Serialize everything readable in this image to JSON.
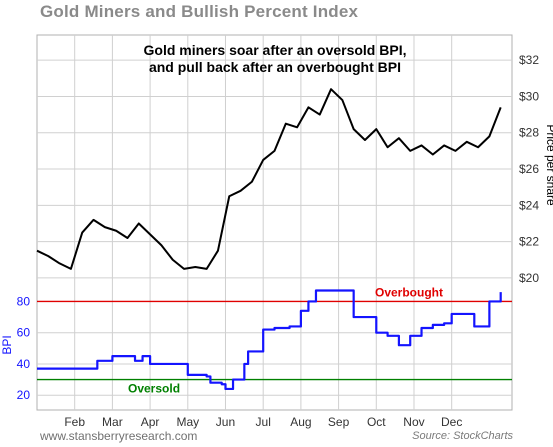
{
  "title": "Gold Miners and Bullish Percent Index",
  "annotation": {
    "line1": "Gold miners soar after an oversold BPI,",
    "line2": "and pull back after an overbought BPI"
  },
  "footer": {
    "left": "www.stansberryresearch.com",
    "right": "Source: StockCharts"
  },
  "colors": {
    "price": "#000000",
    "bpi": "#1414ff",
    "overbought": "#e00000",
    "oversold": "#008000",
    "grid": "#d0d0d0"
  },
  "chart_data": [
    {
      "type": "line",
      "name": "price",
      "ylabel": "Price per share",
      "yticks": [
        "$20",
        "$22",
        "$24",
        "$26",
        "$28",
        "$30",
        "$32"
      ],
      "ylim": [
        19.5,
        33
      ],
      "x": [
        0,
        0.3,
        0.6,
        0.9,
        1.2,
        1.5,
        1.8,
        2.1,
        2.4,
        2.7,
        3.0,
        3.3,
        3.6,
        3.9,
        4.2,
        4.5,
        4.8,
        5.1,
        5.4,
        5.7,
        6.0,
        6.3,
        6.6,
        6.9,
        7.2,
        7.5,
        7.8,
        8.1,
        8.4,
        8.7,
        9.0,
        9.3,
        9.6,
        9.9,
        10.2,
        10.5,
        10.8,
        11.1,
        11.4,
        11.7,
        12.0,
        12.3
      ],
      "values": [
        21.5,
        21.2,
        20.8,
        20.5,
        22.5,
        23.2,
        22.8,
        22.6,
        22.2,
        23.0,
        22.4,
        21.8,
        21.0,
        20.5,
        20.6,
        20.5,
        21.5,
        24.5,
        24.8,
        25.3,
        26.5,
        27.0,
        28.5,
        28.3,
        29.4,
        29.0,
        30.4,
        29.8,
        28.2,
        27.6,
        28.2,
        27.2,
        27.7,
        27.0,
        27.3,
        26.8,
        27.3,
        27.0,
        27.5,
        27.2,
        27.8,
        29.4
      ],
      "grid": true
    },
    {
      "type": "line",
      "name": "BPI",
      "ylabel": "BPI",
      "yticks": [
        "20",
        "40",
        "60",
        "80"
      ],
      "ylim": [
        15,
        95
      ],
      "x": [
        0,
        1.0,
        1.5,
        1.6,
        2.0,
        2.5,
        2.6,
        2.8,
        3.0,
        3.8,
        4.0,
        4.5,
        4.6,
        4.9,
        5.0,
        5.2,
        5.5,
        5.6,
        6.0,
        6.3,
        6.7,
        7.0,
        7.2,
        7.4,
        8.0,
        8.3,
        8.4,
        8.7,
        9.0,
        9.3,
        9.6,
        9.9,
        10.2,
        10.5,
        10.8,
        11.0,
        11.3,
        11.6,
        12.0,
        12.3
      ],
      "values": [
        37,
        37,
        37,
        42,
        45,
        45,
        42,
        45,
        40,
        40,
        33,
        32,
        28,
        27,
        24,
        30,
        40,
        48,
        62,
        63,
        64,
        74,
        80,
        87,
        87,
        87,
        70,
        70,
        60,
        58,
        52,
        58,
        63,
        65,
        66,
        72,
        72,
        64,
        80,
        86
      ],
      "grid": true,
      "reference_lines": [
        {
          "label": "Overbought",
          "value": 80
        },
        {
          "label": "Oversold",
          "value": 30
        }
      ]
    }
  ],
  "x_axis_labels": [
    "Feb",
    "Mar",
    "Apr",
    "May",
    "Jun",
    "Jul",
    "Aug",
    "Sep",
    "Oct",
    "Nov",
    "Dec"
  ]
}
